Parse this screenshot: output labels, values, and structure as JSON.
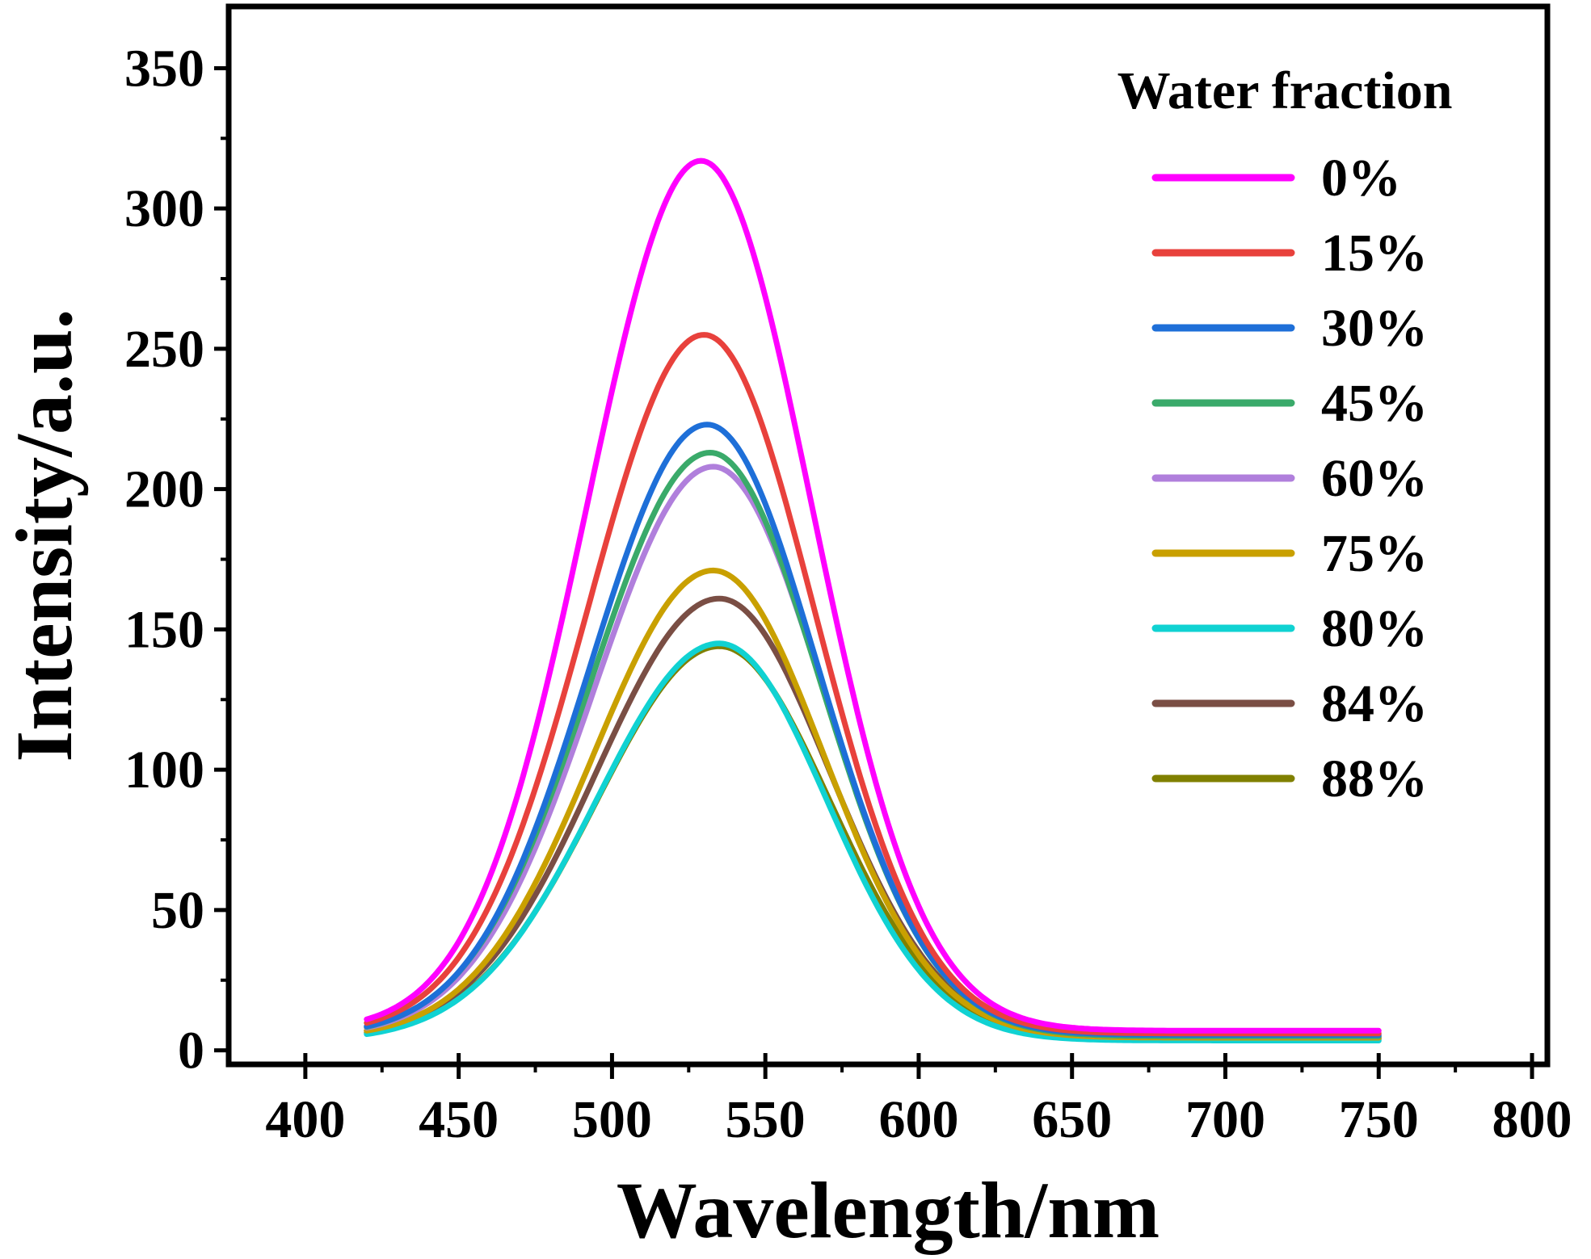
{
  "chart_data": {
    "type": "line",
    "title": "",
    "xlabel": "Wavelength/nm",
    "ylabel": "Intensity/a.u.",
    "xlim": [
      375,
      805
    ],
    "ylim": [
      -5,
      372
    ],
    "x_ticks": [
      400,
      450,
      500,
      550,
      600,
      650,
      700,
      750,
      800
    ],
    "y_ticks": [
      0,
      50,
      100,
      150,
      200,
      250,
      300,
      350
    ],
    "legend": {
      "title": "Water fraction",
      "position": "top-right"
    },
    "x_range": [
      420,
      750
    ],
    "series": [
      {
        "name": "0%",
        "color": "#FF00FF",
        "peak_x": 529,
        "peak": 317,
        "sigma_left": 37,
        "sigma_right": 36,
        "baseline": 7.0
      },
      {
        "name": "15%",
        "color": "#E8413C",
        "peak_x": 530,
        "peak": 255,
        "sigma_left": 38,
        "sigma_right": 36,
        "baseline": 6.0
      },
      {
        "name": "30%",
        "color": "#1E6FD8",
        "peak_x": 531,
        "peak": 223,
        "sigma_left": 38,
        "sigma_right": 36,
        "baseline": 5.5
      },
      {
        "name": "45%",
        "color": "#3AAA6A",
        "peak_x": 532,
        "peak": 213,
        "sigma_left": 39,
        "sigma_right": 36,
        "baseline": 5.0
      },
      {
        "name": "60%",
        "color": "#B07FDC",
        "peak_x": 533,
        "peak": 208,
        "sigma_left": 39,
        "sigma_right": 36,
        "baseline": 5.0
      },
      {
        "name": "75%",
        "color": "#C9A000",
        "peak_x": 533,
        "peak": 171,
        "sigma_left": 39,
        "sigma_right": 36,
        "baseline": 4.5
      },
      {
        "name": "80%",
        "color": "#10D2D2",
        "peak_x": 535,
        "peak": 145,
        "sigma_left": 40,
        "sigma_right": 35,
        "baseline": 3.5
      },
      {
        "name": "84%",
        "color": "#7A4E44",
        "peak_x": 535,
        "peak": 161,
        "sigma_left": 40,
        "sigma_right": 36,
        "baseline": 4.5
      },
      {
        "name": "88%",
        "color": "#808000",
        "peak_x": 535,
        "peak": 144,
        "sigma_left": 40,
        "sigma_right": 36,
        "baseline": 4.0
      }
    ]
  }
}
